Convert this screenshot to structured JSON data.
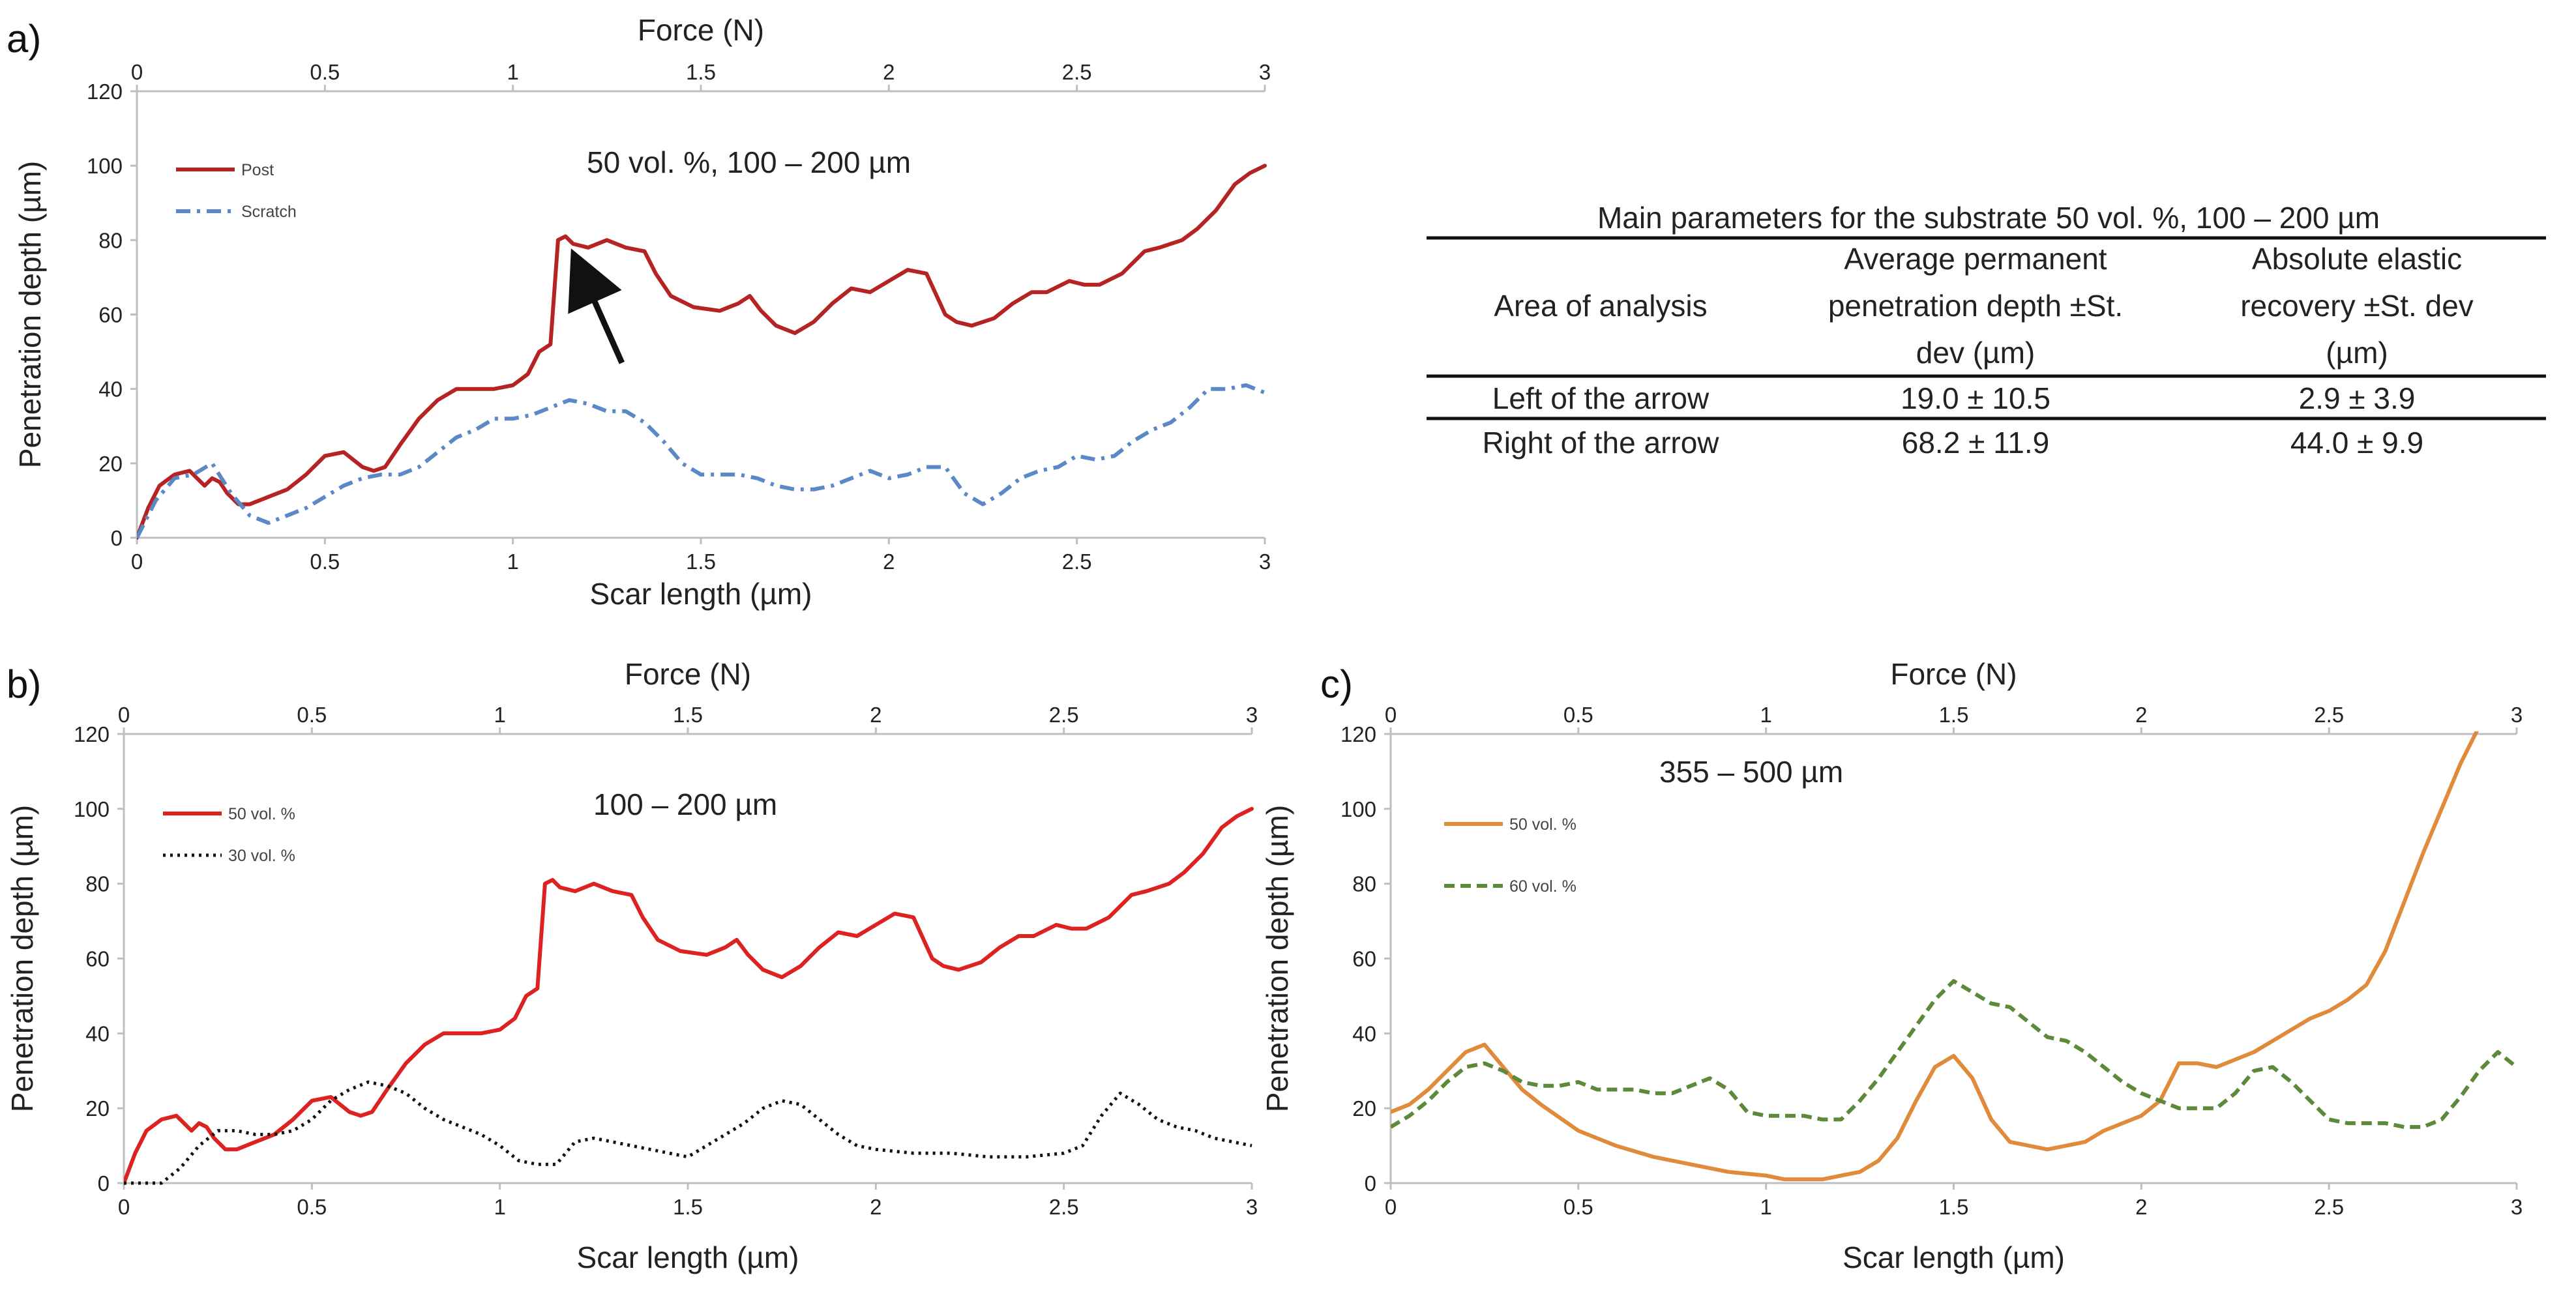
{
  "panels": {
    "a": {
      "letter": "a)"
    },
    "b": {
      "letter": "b)"
    },
    "c": {
      "letter": "c)"
    }
  },
  "table": {
    "title": "Main parameters for the substrate 50 vol. %, 100 – 200 µm",
    "header": {
      "col1": "Area of analysis",
      "col2": [
        "Average permanent",
        "penetration depth ±St.",
        "dev (µm)"
      ],
      "col3": [
        "Absolute elastic",
        "recovery ±St. dev",
        "(µm)"
      ]
    },
    "rows": [
      [
        "Left of the arrow",
        "19.0 ± 10.5",
        "2.9 ± 3.9"
      ],
      [
        "Right of the arrow",
        "68.2 ± 11.9",
        "44.0 ± 9.9"
      ]
    ]
  },
  "chart_data": [
    {
      "id": "a",
      "type": "line",
      "annotation": "50 vol. %, 100 – 200 µm",
      "xlabel": "Scar length (µm)",
      "x2label": "Force (N)",
      "ylabel": "Penetration depth (µm)",
      "xlim": [
        0,
        3
      ],
      "x2lim": [
        0,
        3
      ],
      "ylim": [
        0,
        120
      ],
      "xticks": [
        "0",
        "0.5",
        "1",
        "1.5",
        "2",
        "2.5",
        "3"
      ],
      "x2ticks": [
        "0",
        "0.5",
        "1",
        "1.5",
        "2",
        "2.5",
        "3"
      ],
      "yticks": [
        "0",
        "20",
        "40",
        "60",
        "80",
        "100",
        "120"
      ],
      "grid": false,
      "legend_position": "top-left",
      "arrow": {
        "from": [
          1.29,
          47
        ],
        "to": [
          1.18,
          72
        ]
      },
      "series": [
        {
          "name": "Post",
          "color": "#b52323",
          "dash": "solid",
          "x": [
            0,
            0.03,
            0.06,
            0.1,
            0.14,
            0.18,
            0.2,
            0.22,
            0.24,
            0.27,
            0.3,
            0.35,
            0.4,
            0.45,
            0.5,
            0.55,
            0.6,
            0.63,
            0.66,
            0.7,
            0.75,
            0.8,
            0.85,
            0.9,
            0.95,
            1.0,
            1.04,
            1.07,
            1.1,
            1.12,
            1.14,
            1.16,
            1.2,
            1.25,
            1.3,
            1.35,
            1.38,
            1.42,
            1.48,
            1.55,
            1.6,
            1.63,
            1.66,
            1.7,
            1.75,
            1.8,
            1.85,
            1.9,
            1.95,
            2.0,
            2.05,
            2.1,
            2.15,
            2.18,
            2.22,
            2.28,
            2.33,
            2.38,
            2.42,
            2.48,
            2.52,
            2.56,
            2.62,
            2.68,
            2.72,
            2.78,
            2.82,
            2.87,
            2.92,
            2.96,
            3.0
          ],
          "y": [
            0,
            8,
            14,
            17,
            18,
            14,
            16,
            15,
            12,
            9,
            9,
            11,
            13,
            17,
            22,
            23,
            19,
            18,
            19,
            25,
            32,
            37,
            40,
            40,
            40,
            41,
            44,
            50,
            52,
            80,
            81,
            79,
            78,
            80,
            78,
            77,
            71,
            65,
            62,
            61,
            63,
            65,
            61,
            57,
            55,
            58,
            63,
            67,
            66,
            69,
            72,
            71,
            60,
            58,
            57,
            59,
            63,
            66,
            66,
            69,
            68,
            68,
            71,
            77,
            78,
            80,
            83,
            88,
            95,
            98,
            100
          ]
        },
        {
          "name": "Scratch",
          "color": "#5b88c6",
          "dash": "dashdot",
          "x": [
            0,
            0.05,
            0.1,
            0.15,
            0.2,
            0.25,
            0.3,
            0.35,
            0.4,
            0.45,
            0.5,
            0.55,
            0.6,
            0.65,
            0.7,
            0.75,
            0.8,
            0.85,
            0.9,
            0.95,
            1.0,
            1.05,
            1.1,
            1.15,
            1.2,
            1.25,
            1.3,
            1.35,
            1.4,
            1.45,
            1.5,
            1.55,
            1.6,
            1.65,
            1.7,
            1.75,
            1.8,
            1.85,
            1.9,
            1.95,
            2.0,
            2.05,
            2.1,
            2.15,
            2.2,
            2.25,
            2.3,
            2.35,
            2.4,
            2.45,
            2.5,
            2.55,
            2.6,
            2.65,
            2.7,
            2.75,
            2.8,
            2.85,
            2.9,
            2.95,
            3.0
          ],
          "y": [
            0,
            10,
            16,
            17,
            20,
            12,
            6,
            4,
            6,
            8,
            11,
            14,
            16,
            17,
            17,
            19,
            23,
            27,
            29,
            32,
            32,
            33,
            35,
            37,
            36,
            34,
            34,
            31,
            26,
            20,
            17,
            17,
            17,
            16,
            14,
            13,
            13,
            14,
            16,
            18,
            16,
            17,
            19,
            19,
            12,
            9,
            12,
            16,
            18,
            19,
            22,
            21,
            22,
            26,
            29,
            31,
            35,
            40,
            40,
            41,
            39
          ]
        }
      ]
    },
    {
      "id": "b",
      "type": "line",
      "annotation": "100 – 200 µm",
      "xlabel": "Scar length (µm)",
      "x2label": "Force (N)",
      "ylabel": "Penetration depth (µm)",
      "xlim": [
        0,
        3
      ],
      "x2lim": [
        0,
        3
      ],
      "ylim": [
        0,
        120
      ],
      "xticks": [
        "0",
        "0.5",
        "1",
        "1.5",
        "2",
        "2.5",
        "3"
      ],
      "x2ticks": [
        "0",
        "0.5",
        "1",
        "1.5",
        "2",
        "2.5",
        "3"
      ],
      "yticks": [
        "0",
        "20",
        "40",
        "60",
        "80",
        "100",
        "120"
      ],
      "grid": false,
      "legend_position": "top-left",
      "series": [
        {
          "name": "50 vol. %",
          "color": "#dd2222",
          "dash": "solid",
          "x": [
            0,
            0.03,
            0.06,
            0.1,
            0.14,
            0.18,
            0.2,
            0.22,
            0.24,
            0.27,
            0.3,
            0.35,
            0.4,
            0.45,
            0.5,
            0.55,
            0.6,
            0.63,
            0.66,
            0.7,
            0.75,
            0.8,
            0.85,
            0.9,
            0.95,
            1.0,
            1.04,
            1.07,
            1.1,
            1.12,
            1.14,
            1.16,
            1.2,
            1.25,
            1.3,
            1.35,
            1.38,
            1.42,
            1.48,
            1.55,
            1.6,
            1.63,
            1.66,
            1.7,
            1.75,
            1.8,
            1.85,
            1.9,
            1.95,
            2.0,
            2.05,
            2.1,
            2.15,
            2.18,
            2.22,
            2.28,
            2.33,
            2.38,
            2.42,
            2.48,
            2.52,
            2.56,
            2.62,
            2.68,
            2.72,
            2.78,
            2.82,
            2.87,
            2.92,
            2.96,
            3.0
          ],
          "y": [
            0,
            8,
            14,
            17,
            18,
            14,
            16,
            15,
            12,
            9,
            9,
            11,
            13,
            17,
            22,
            23,
            19,
            18,
            19,
            25,
            32,
            37,
            40,
            40,
            40,
            41,
            44,
            50,
            52,
            80,
            81,
            79,
            78,
            80,
            78,
            77,
            71,
            65,
            62,
            61,
            63,
            65,
            61,
            57,
            55,
            58,
            63,
            67,
            66,
            69,
            72,
            71,
            60,
            58,
            57,
            59,
            63,
            66,
            66,
            69,
            68,
            68,
            71,
            77,
            78,
            80,
            83,
            88,
            95,
            98,
            100
          ]
        },
        {
          "name": "30 vol. %",
          "color": "#111111",
          "dash": "dotted",
          "x": [
            0,
            0.1,
            0.15,
            0.2,
            0.25,
            0.3,
            0.35,
            0.4,
            0.45,
            0.5,
            0.55,
            0.6,
            0.65,
            0.7,
            0.75,
            0.8,
            0.85,
            0.9,
            0.95,
            1.0,
            1.05,
            1.1,
            1.15,
            1.2,
            1.25,
            1.3,
            1.35,
            1.4,
            1.45,
            1.5,
            1.55,
            1.6,
            1.65,
            1.7,
            1.75,
            1.8,
            1.85,
            1.9,
            1.95,
            2.0,
            2.1,
            2.2,
            2.3,
            2.4,
            2.5,
            2.55,
            2.6,
            2.65,
            2.7,
            2.75,
            2.8,
            2.85,
            2.9,
            2.95,
            3.0
          ],
          "y": [
            0,
            0,
            4,
            10,
            14,
            14,
            13,
            13,
            14,
            17,
            22,
            25,
            27,
            26,
            24,
            20,
            17,
            15,
            13,
            10,
            6,
            5,
            5,
            11,
            12,
            11,
            10,
            9,
            8,
            7,
            10,
            13,
            16,
            20,
            22,
            21,
            17,
            13,
            10,
            9,
            8,
            8,
            7,
            7,
            8,
            10,
            18,
            24,
            21,
            17,
            15,
            14,
            12,
            11,
            10
          ]
        }
      ]
    },
    {
      "id": "c",
      "type": "line",
      "annotation": "355 – 500 µm",
      "xlabel": "Scar length (µm)",
      "x2label": "Force (N)",
      "ylabel": "Penetration depth (µm)",
      "xlim": [
        0,
        3
      ],
      "x2lim": [
        0,
        3
      ],
      "ylim": [
        0,
        120
      ],
      "xticks": [
        "0",
        "0.5",
        "1",
        "1.5",
        "2",
        "2.5",
        "3"
      ],
      "x2ticks": [
        "0",
        "0.5",
        "1",
        "1.5",
        "2",
        "2.5",
        "3"
      ],
      "yticks": [
        "0",
        "20",
        "40",
        "60",
        "80",
        "100",
        "120"
      ],
      "grid": false,
      "legend_position": "top-left",
      "series": [
        {
          "name": "50 vol. %",
          "color": "#e08a3c",
          "dash": "solid",
          "x": [
            0,
            0.05,
            0.1,
            0.15,
            0.2,
            0.25,
            0.3,
            0.35,
            0.4,
            0.5,
            0.6,
            0.7,
            0.8,
            0.9,
            1.0,
            1.05,
            1.1,
            1.15,
            1.2,
            1.25,
            1.3,
            1.35,
            1.4,
            1.45,
            1.5,
            1.55,
            1.6,
            1.65,
            1.7,
            1.75,
            1.8,
            1.85,
            1.9,
            1.95,
            2.0,
            2.05,
            2.1,
            2.15,
            2.2,
            2.25,
            2.3,
            2.35,
            2.4,
            2.45,
            2.5,
            2.55,
            2.6,
            2.65,
            2.7,
            2.75,
            2.8,
            2.85,
            2.9
          ],
          "y": [
            19,
            21,
            25,
            30,
            35,
            37,
            31,
            25,
            21,
            14,
            10,
            7,
            5,
            3,
            2,
            1,
            1,
            1,
            2,
            3,
            6,
            12,
            22,
            31,
            34,
            28,
            17,
            11,
            10,
            9,
            10,
            11,
            14,
            16,
            18,
            22,
            32,
            32,
            31,
            33,
            35,
            38,
            41,
            44,
            46,
            49,
            53,
            62,
            75,
            88,
            100,
            112,
            122
          ]
        },
        {
          "name": "60 vol. %",
          "color": "#5d8a3a",
          "dash": "dashed",
          "x": [
            0,
            0.05,
            0.1,
            0.15,
            0.2,
            0.25,
            0.3,
            0.35,
            0.4,
            0.45,
            0.5,
            0.55,
            0.6,
            0.65,
            0.7,
            0.75,
            0.8,
            0.85,
            0.9,
            0.95,
            1.0,
            1.05,
            1.1,
            1.15,
            1.2,
            1.25,
            1.3,
            1.35,
            1.4,
            1.45,
            1.5,
            1.55,
            1.6,
            1.65,
            1.7,
            1.75,
            1.8,
            1.85,
            1.9,
            1.95,
            2.0,
            2.05,
            2.1,
            2.15,
            2.2,
            2.25,
            2.3,
            2.35,
            2.4,
            2.45,
            2.5,
            2.55,
            2.6,
            2.65,
            2.7,
            2.75,
            2.8,
            2.85,
            2.9,
            2.95,
            3.0
          ],
          "y": [
            15,
            18,
            22,
            27,
            31,
            32,
            30,
            27,
            26,
            26,
            27,
            25,
            25,
            25,
            24,
            24,
            26,
            28,
            25,
            19,
            18,
            18,
            18,
            17,
            17,
            22,
            28,
            35,
            42,
            49,
            54,
            51,
            48,
            47,
            43,
            39,
            38,
            35,
            31,
            27,
            24,
            22,
            20,
            20,
            20,
            24,
            30,
            31,
            27,
            22,
            17,
            16,
            16,
            16,
            15,
            15,
            17,
            23,
            30,
            35,
            31
          ]
        }
      ]
    }
  ]
}
